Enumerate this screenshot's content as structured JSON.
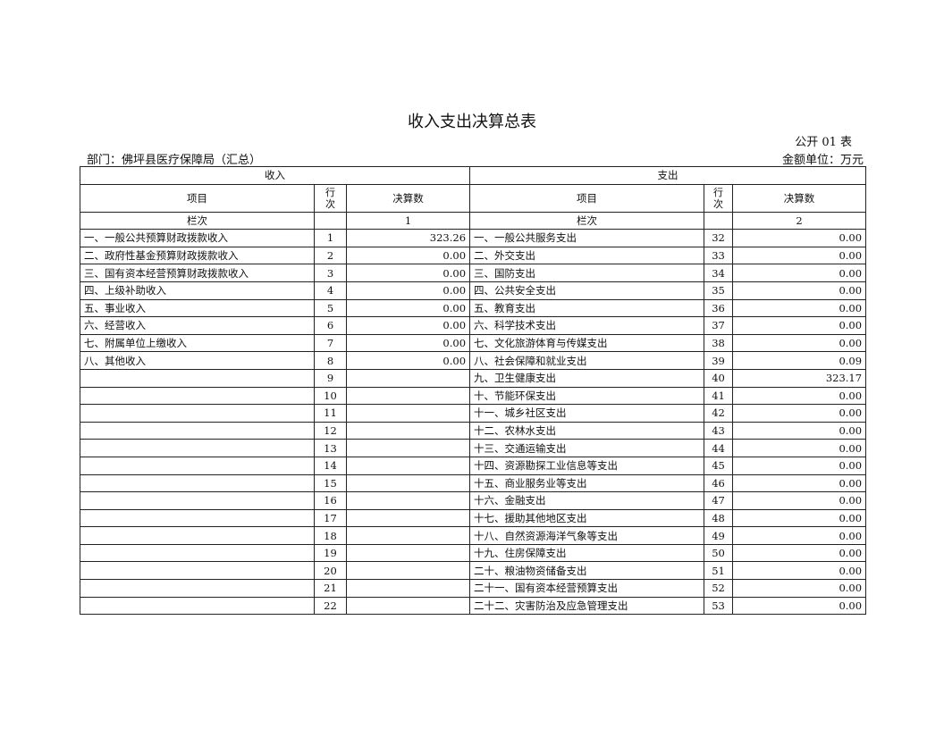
{
  "title": "收入支出决算总表",
  "form_code": "公开 01 表",
  "department": "部门：佛坪县医疗保障局（汇总）",
  "unit": "金额单位：万元",
  "headers": {
    "income": "收入",
    "expense": "支出",
    "item": "项目",
    "row_no": "行次",
    "amount": "决算数",
    "column_no": "栏次",
    "col1": "1",
    "col2": "2"
  },
  "rows": [
    {
      "in_item": "一、一般公共预算财政拨款收入",
      "in_no": "1",
      "in_amt": "323.26",
      "ex_item": "一、一般公共服务支出",
      "ex_no": "32",
      "ex_amt": "0.00"
    },
    {
      "in_item": "二、政府性基金预算财政拨款收入",
      "in_no": "2",
      "in_amt": "0.00",
      "ex_item": "二、外交支出",
      "ex_no": "33",
      "ex_amt": "0.00"
    },
    {
      "in_item": "三、国有资本经营预算财政拨款收入",
      "in_no": "3",
      "in_amt": "0.00",
      "ex_item": "三、国防支出",
      "ex_no": "34",
      "ex_amt": "0.00"
    },
    {
      "in_item": "四、上级补助收入",
      "in_no": "4",
      "in_amt": "0.00",
      "ex_item": "四、公共安全支出",
      "ex_no": "35",
      "ex_amt": "0.00"
    },
    {
      "in_item": "五、事业收入",
      "in_no": "5",
      "in_amt": "0.00",
      "ex_item": "五、教育支出",
      "ex_no": "36",
      "ex_amt": "0.00"
    },
    {
      "in_item": "六、经营收入",
      "in_no": "6",
      "in_amt": "0.00",
      "ex_item": "六、科学技术支出",
      "ex_no": "37",
      "ex_amt": "0.00"
    },
    {
      "in_item": "七、附属单位上缴收入",
      "in_no": "7",
      "in_amt": "0.00",
      "ex_item": "七、文化旅游体育与传媒支出",
      "ex_no": "38",
      "ex_amt": "0.00"
    },
    {
      "in_item": "八、其他收入",
      "in_no": "8",
      "in_amt": "0.00",
      "ex_item": "八、社会保障和就业支出",
      "ex_no": "39",
      "ex_amt": "0.09"
    },
    {
      "in_item": "",
      "in_no": "9",
      "in_amt": "",
      "ex_item": "九、卫生健康支出",
      "ex_no": "40",
      "ex_amt": "323.17"
    },
    {
      "in_item": "",
      "in_no": "10",
      "in_amt": "",
      "ex_item": "十、节能环保支出",
      "ex_no": "41",
      "ex_amt": "0.00"
    },
    {
      "in_item": "",
      "in_no": "11",
      "in_amt": "",
      "ex_item": "十一、城乡社区支出",
      "ex_no": "42",
      "ex_amt": "0.00"
    },
    {
      "in_item": "",
      "in_no": "12",
      "in_amt": "",
      "ex_item": "十二、农林水支出",
      "ex_no": "43",
      "ex_amt": "0.00"
    },
    {
      "in_item": "",
      "in_no": "13",
      "in_amt": "",
      "ex_item": "十三、交通运输支出",
      "ex_no": "44",
      "ex_amt": "0.00"
    },
    {
      "in_item": "",
      "in_no": "14",
      "in_amt": "",
      "ex_item": "十四、资源勘探工业信息等支出",
      "ex_no": "45",
      "ex_amt": "0.00"
    },
    {
      "in_item": "",
      "in_no": "15",
      "in_amt": "",
      "ex_item": "十五、商业服务业等支出",
      "ex_no": "46",
      "ex_amt": "0.00"
    },
    {
      "in_item": "",
      "in_no": "16",
      "in_amt": "",
      "ex_item": "十六、金融支出",
      "ex_no": "47",
      "ex_amt": "0.00"
    },
    {
      "in_item": "",
      "in_no": "17",
      "in_amt": "",
      "ex_item": "十七、援助其他地区支出",
      "ex_no": "48",
      "ex_amt": "0.00"
    },
    {
      "in_item": "",
      "in_no": "18",
      "in_amt": "",
      "ex_item": "十八、自然资源海洋气象等支出",
      "ex_no": "49",
      "ex_amt": "0.00"
    },
    {
      "in_item": "",
      "in_no": "19",
      "in_amt": "",
      "ex_item": "十九、住房保障支出",
      "ex_no": "50",
      "ex_amt": "0.00"
    },
    {
      "in_item": "",
      "in_no": "20",
      "in_amt": "",
      "ex_item": "二十、粮油物资储备支出",
      "ex_no": "51",
      "ex_amt": "0.00"
    },
    {
      "in_item": "",
      "in_no": "21",
      "in_amt": "",
      "ex_item": "二十一、国有资本经营预算支出",
      "ex_no": "52",
      "ex_amt": "0.00"
    },
    {
      "in_item": "",
      "in_no": "22",
      "in_amt": "",
      "ex_item": "二十二、灾害防治及应急管理支出",
      "ex_no": "53",
      "ex_amt": "0.00"
    }
  ]
}
